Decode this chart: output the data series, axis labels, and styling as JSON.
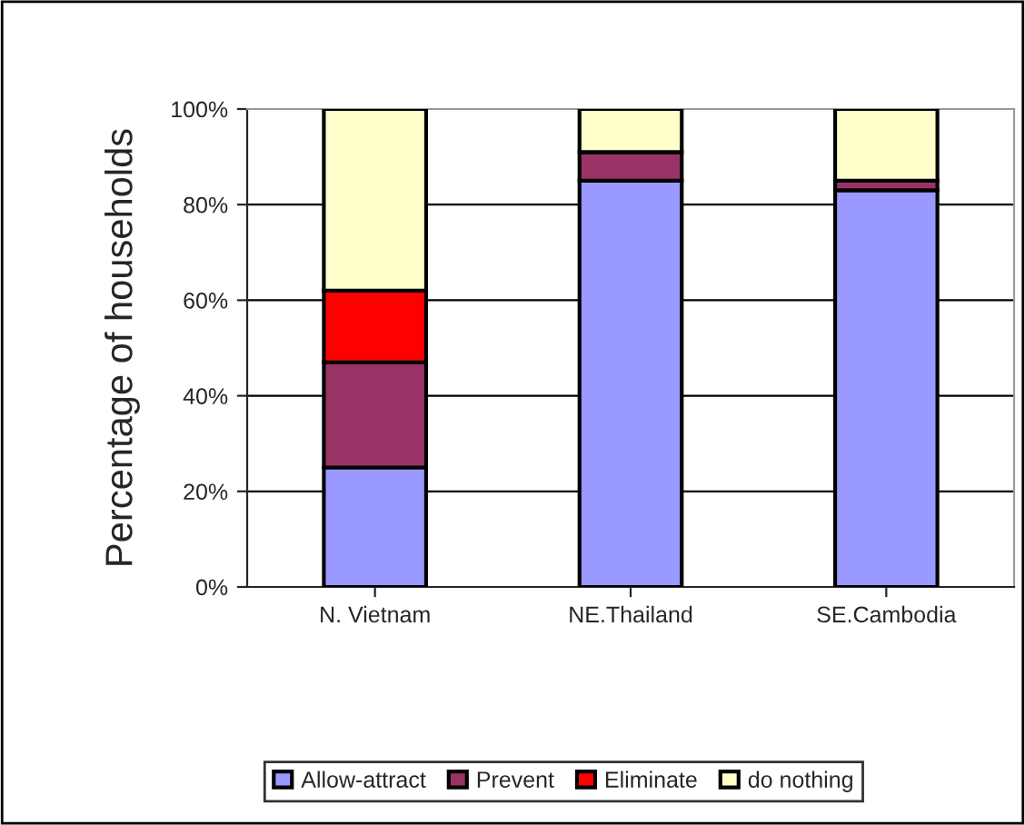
{
  "chart_data": {
    "type": "bar",
    "stacked": true,
    "ylabel": "Percentage of households",
    "categories": [
      "N. Vietnam",
      "NE.Thailand",
      "SE.Cambodia"
    ],
    "series": [
      {
        "name": "Allow-attract",
        "color": "#9999ff",
        "values": [
          25,
          85,
          83
        ]
      },
      {
        "name": "Prevent",
        "color": "#993366",
        "values": [
          22,
          6,
          2
        ]
      },
      {
        "name": "Eliminate",
        "color": "#ff0000",
        "values": [
          15,
          0,
          0
        ]
      },
      {
        "name": "do nothing",
        "color": "#ffffcc",
        "values": [
          38,
          9,
          15
        ]
      }
    ],
    "ylim": [
      0,
      100
    ],
    "yticks": [
      {
        "value": 0,
        "label": "0%"
      },
      {
        "value": 20,
        "label": "20%"
      },
      {
        "value": 40,
        "label": "40%"
      },
      {
        "value": 60,
        "label": "60%"
      },
      {
        "value": 80,
        "label": "80%"
      },
      {
        "value": 100,
        "label": "100%"
      }
    ],
    "grid": "y",
    "legend": "bottom"
  }
}
